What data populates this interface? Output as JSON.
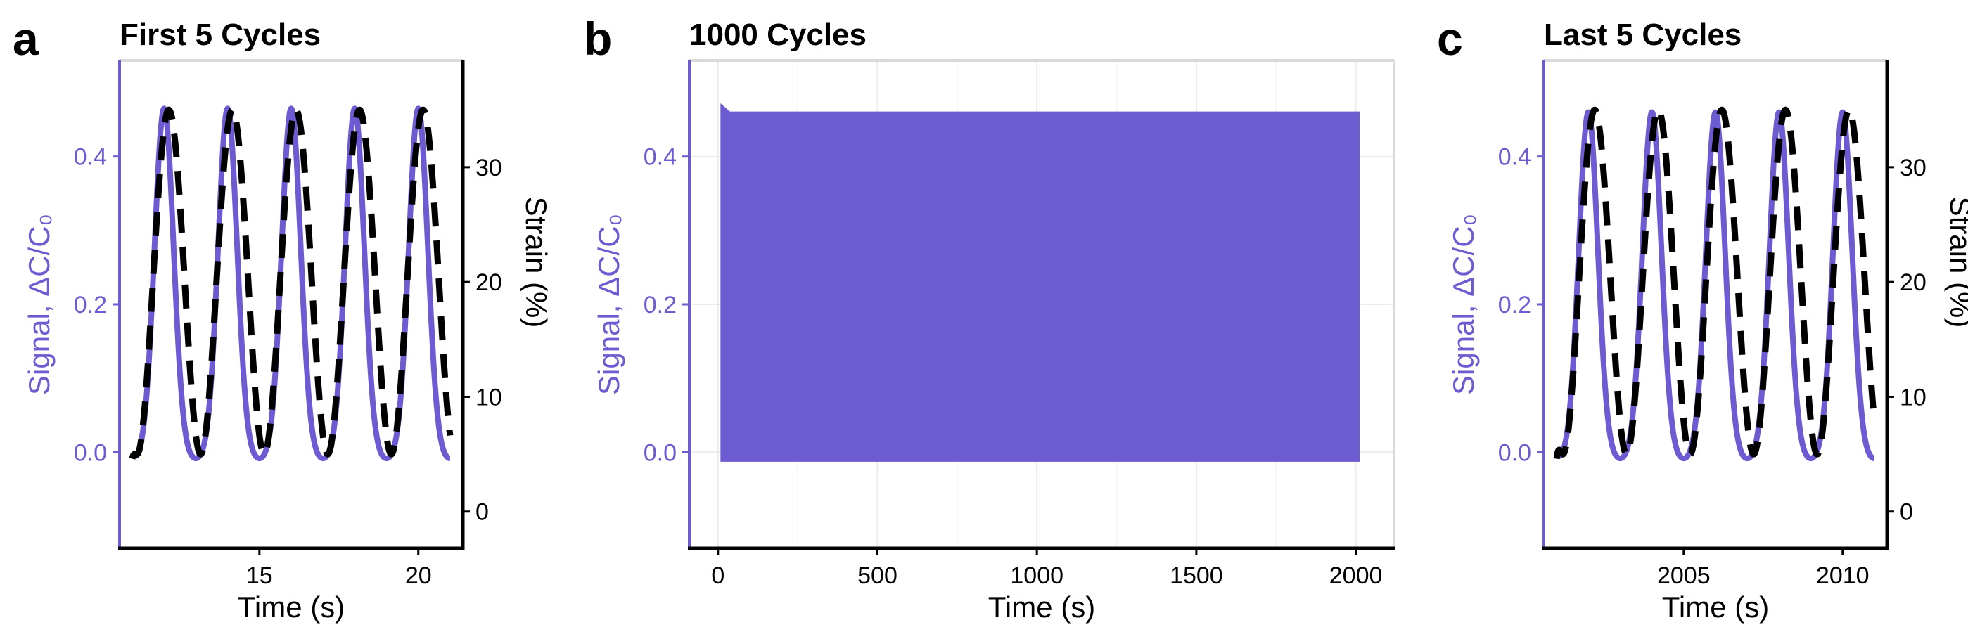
{
  "colors": {
    "signal": "#6c5bd1",
    "strain": "#000000",
    "grid": "#ebebeb",
    "frame": "#d9d9d9"
  },
  "chart_data": [
    {
      "panel_label": "a",
      "title": "First 5 Cycles",
      "type": "line",
      "xlabel": "Time (s)",
      "ylabel": "Signal, ΔC/C₀",
      "y2label": "Strain (%)",
      "xlim": [
        10.6,
        21.4
      ],
      "ylim": [
        -0.13,
        0.53
      ],
      "y2lim": [
        -3.2,
        39.3
      ],
      "x_ticks": [
        15,
        20
      ],
      "y_ticks": [
        0.0,
        0.2,
        0.4
      ],
      "y2_ticks": [
        0,
        10,
        20,
        30
      ],
      "x_tick_labels": [
        "15",
        "20"
      ],
      "y_tick_labels": [
        "0.0",
        "0.2",
        "0.4"
      ],
      "y2_tick_labels": [
        "0",
        "10",
        "20",
        "30"
      ],
      "grid": false,
      "series": [
        {
          "axis": "left",
          "style": "solid",
          "color": "#6c5bd1",
          "x_start": 11.0,
          "x_end": 21.0,
          "period": 2.0,
          "first_peak": 12.0,
          "min": -0.012,
          "max": 0.465,
          "width_sigma": 0.3,
          "baseline_start": 0.0
        },
        {
          "axis": "right",
          "style": "dashed",
          "color": "#000000",
          "x_start": 11.0,
          "x_end": 21.0,
          "period": 2.0,
          "first_peak": 12.15,
          "min": 5.0,
          "max": 35.0,
          "start_value": 4.6
        }
      ]
    },
    {
      "panel_label": "b",
      "title": "1000 Cycles",
      "type": "area",
      "xlabel": "Time (s)",
      "ylabel": "Signal, ΔC/C₀",
      "xlim": [
        -90,
        2120
      ],
      "ylim": [
        -0.13,
        0.53
      ],
      "x_ticks": [
        0,
        500,
        1000,
        1500,
        2000
      ],
      "y_ticks": [
        0.0,
        0.2,
        0.4
      ],
      "x_tick_labels": [
        "0",
        "500",
        "1000",
        "1500",
        "2000"
      ],
      "y_tick_labels": [
        "0.0",
        "0.2",
        "0.4"
      ],
      "grid": true,
      "series": [
        {
          "axis": "left",
          "style": "band",
          "color": "#6c5bd1",
          "x_start": 10,
          "x_end": 2010,
          "min": -0.012,
          "max": 0.46,
          "initial_max": 0.47
        }
      ]
    },
    {
      "panel_label": "c",
      "title": "Last 5 Cycles",
      "type": "line",
      "xlabel": "Time (s)",
      "ylabel": "Signal, ΔC/C₀",
      "y2label": "Strain (%)",
      "xlim": [
        2000.6,
        2011.4
      ],
      "ylim": [
        -0.13,
        0.53
      ],
      "y2lim": [
        -3.2,
        39.3
      ],
      "x_ticks": [
        2005,
        2010
      ],
      "y_ticks": [
        0.0,
        0.2,
        0.4
      ],
      "y2_ticks": [
        0,
        10,
        20,
        30
      ],
      "x_tick_labels": [
        "2005",
        "2010"
      ],
      "y_tick_labels": [
        "0.0",
        "0.2",
        "0.4"
      ],
      "y2_tick_labels": [
        "0",
        "10",
        "20",
        "30"
      ],
      "grid": false,
      "series": [
        {
          "axis": "left",
          "style": "solid",
          "color": "#6c5bd1",
          "x_start": 2001.0,
          "x_end": 2011.0,
          "period": 2.0,
          "first_peak": 2002.0,
          "min": -0.012,
          "max": 0.46,
          "width_sigma": 0.3,
          "baseline_start": 0.0
        },
        {
          "axis": "right",
          "style": "dashed",
          "color": "#000000",
          "x_start": 2001.0,
          "x_end": 2011.0,
          "period": 2.0,
          "first_peak": 2002.2,
          "min": 5.0,
          "max": 35.0,
          "start_value": 4.6
        }
      ]
    }
  ]
}
